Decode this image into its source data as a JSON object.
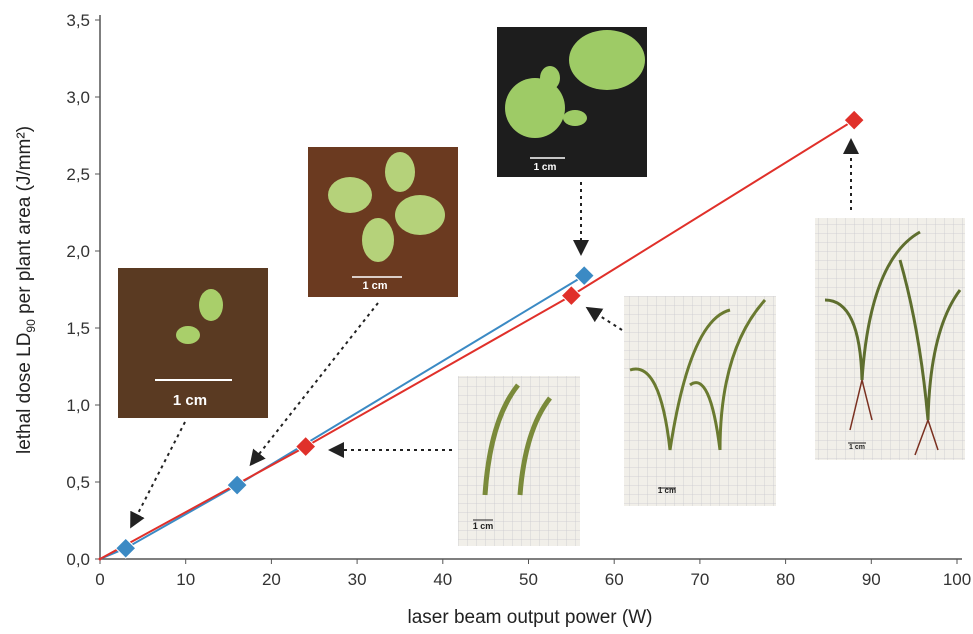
{
  "chart_data": {
    "type": "line",
    "x_label": "laser beam output power (W)",
    "y_label_parts": [
      "lethal dose LD",
      "90",
      " per plant area (J/mm²)"
    ],
    "xlim": [
      0,
      100
    ],
    "xticks": [
      0,
      10,
      20,
      30,
      40,
      50,
      60,
      70,
      80,
      90,
      100
    ],
    "ylim": [
      0,
      3.5
    ],
    "yticks": [
      {
        "value": 0,
        "label": "0,0"
      },
      {
        "value": 0.5,
        "label": "0,5"
      },
      {
        "value": 1,
        "label": "1,0"
      },
      {
        "value": 1.5,
        "label": "1,5"
      },
      {
        "value": 2,
        "label": "2,0"
      },
      {
        "value": 2.5,
        "label": "2,5"
      },
      {
        "value": 3,
        "label": "3,0"
      },
      {
        "value": 3.5,
        "label": "3,5"
      }
    ],
    "series": [
      {
        "color": "#3b8ac4",
        "x": [
          0,
          3,
          16,
          56.5
        ],
        "values": [
          0,
          0.07,
          0.48,
          1.84
        ]
      },
      {
        "color": "#e0302a",
        "x": [
          0,
          24,
          55,
          88
        ],
        "values": [
          0,
          0.73,
          1.71,
          2.85
        ]
      }
    ],
    "photos": [
      {
        "scale_label": "1 cm"
      },
      {
        "scale_label": "1 cm"
      },
      {
        "scale_label": "1 cm"
      },
      {
        "scale_label": "1 cm"
      },
      {
        "scale_label": "1 cm"
      },
      {
        "scale_label": "1 cm"
      }
    ]
  }
}
